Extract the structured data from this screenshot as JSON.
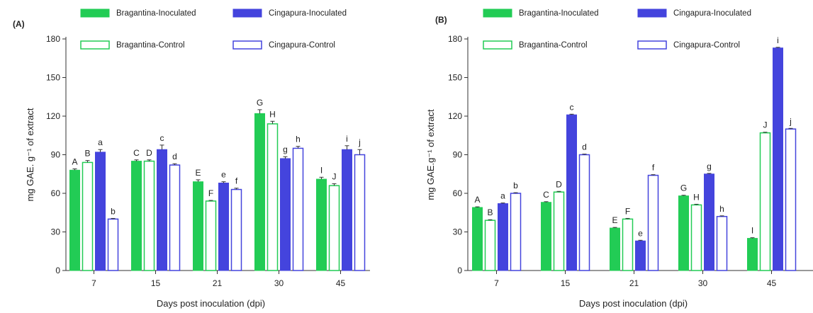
{
  "chart_data": [
    {
      "type": "bar",
      "panel_label": "(A)",
      "ylabel": "mg GAE. g⁻¹ of extract",
      "xlabel": "Days post inoculation (dpi)",
      "ylim": [
        0,
        180
      ],
      "yticks": [
        0,
        30,
        60,
        90,
        120,
        150,
        180
      ],
      "categories": [
        "7",
        "15",
        "21",
        "30",
        "45"
      ],
      "series": [
        {
          "name": "Bragantina-Inoculated",
          "color": "#22cc55",
          "fill": "solid",
          "values": [
            78,
            85,
            69,
            122,
            71
          ],
          "errors": [
            1,
            1,
            1.5,
            3,
            1.5
          ],
          "letters": [
            "A",
            "C",
            "E",
            "G",
            "I"
          ]
        },
        {
          "name": "Bragantina-Control",
          "color": "#22cc55",
          "fill": "open",
          "values": [
            84,
            85,
            54,
            114,
            66
          ],
          "errors": [
            1.5,
            1,
            0.5,
            2,
            1.5
          ],
          "letters": [
            "B",
            "D",
            "F",
            "H",
            "J"
          ]
        },
        {
          "name": "Cingapura-Inoculated",
          "color": "#4444dd",
          "fill": "solid",
          "values": [
            92,
            94,
            68,
            87,
            94
          ],
          "errors": [
            2,
            3.5,
            1,
            1.5,
            3
          ],
          "letters": [
            "a",
            "c",
            "e",
            "g",
            "i"
          ]
        },
        {
          "name": "Cingapura-Control",
          "color": "#4444dd",
          "fill": "open",
          "values": [
            40,
            82,
            63,
            95,
            90
          ],
          "errors": [
            0.5,
            1,
            1,
            1.5,
            4
          ],
          "letters": [
            "b",
            "d",
            "f",
            "h",
            "j"
          ]
        }
      ],
      "legend_placement": "top"
    },
    {
      "type": "bar",
      "panel_label": "(B)",
      "ylabel": "mg GAE.g⁻¹ of extract",
      "xlabel": "Days post inoculation (dpi)",
      "ylim": [
        0,
        180
      ],
      "yticks": [
        0,
        30,
        60,
        90,
        120,
        150,
        180
      ],
      "categories": [
        "7",
        "15",
        "21",
        "30",
        "45"
      ],
      "series": [
        {
          "name": "Bragantina-Inoculated",
          "color": "#22cc55",
          "fill": "solid",
          "values": [
            49,
            53,
            33,
            58,
            25
          ],
          "errors": [
            0.5,
            0.5,
            0.5,
            0.5,
            0.5
          ],
          "letters": [
            "A",
            "C",
            "E",
            "G",
            "I"
          ]
        },
        {
          "name": "Bragantina-Control",
          "color": "#22cc55",
          "fill": "open",
          "values": [
            39,
            61,
            40,
            51,
            107
          ],
          "errors": [
            0.5,
            0.5,
            0.5,
            0.5,
            0.5
          ],
          "letters": [
            "B",
            "D",
            "F",
            "H",
            "J"
          ]
        },
        {
          "name": "Cingapura-Inoculated",
          "color": "#4444dd",
          "fill": "solid",
          "values": [
            52,
            121,
            23,
            75,
            173
          ],
          "errors": [
            0.5,
            0.5,
            0.5,
            0.5,
            0.5
          ],
          "letters": [
            "a",
            "c",
            "e",
            "g",
            "i"
          ]
        },
        {
          "name": "Cingapura-Control",
          "color": "#4444dd",
          "fill": "open",
          "values": [
            60,
            90,
            74,
            42,
            110
          ],
          "errors": [
            0.5,
            0.5,
            0.5,
            0.5,
            0.5
          ],
          "letters": [
            "b",
            "d",
            "f",
            "h",
            "j"
          ]
        }
      ],
      "legend_placement": "top"
    }
  ]
}
